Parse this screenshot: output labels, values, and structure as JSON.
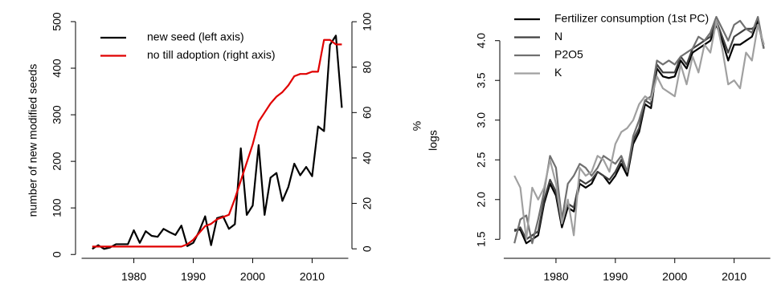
{
  "chart_data": [
    {
      "type": "line",
      "y_label": "number of new modified seeds",
      "y2_label": "%",
      "x": [
        1973,
        1974,
        1975,
        1976,
        1977,
        1978,
        1979,
        1980,
        1981,
        1982,
        1983,
        1984,
        1985,
        1986,
        1987,
        1988,
        1989,
        1990,
        1991,
        1992,
        1993,
        1994,
        1995,
        1996,
        1997,
        1998,
        1999,
        2000,
        2001,
        2002,
        2003,
        2004,
        2005,
        2006,
        2007,
        2008,
        2009,
        2010,
        2011,
        2012,
        2013,
        2014,
        2015
      ],
      "series": [
        {
          "name": "new seed (left axis)",
          "color": "#000000",
          "axis": "y",
          "values": [
            12,
            20,
            12,
            15,
            22,
            22,
            22,
            52,
            25,
            50,
            40,
            38,
            55,
            48,
            42,
            62,
            18,
            25,
            50,
            82,
            20,
            78,
            82,
            55,
            65,
            228,
            85,
            105,
            235,
            85,
            165,
            175,
            115,
            145,
            195,
            170,
            188,
            168,
            275,
            265,
            450,
            470,
            315
          ]
        },
        {
          "name": "no till adoption (right axis)",
          "color": "#e00000",
          "axis": "y2",
          "values": [
            1,
            1,
            1,
            1,
            1,
            1,
            1,
            1,
            1,
            1,
            1,
            1,
            1,
            1,
            1,
            1,
            2,
            4,
            7,
            10,
            11,
            13,
            14,
            15,
            22,
            30,
            38,
            46,
            56,
            60,
            64,
            67,
            69,
            72,
            76,
            77,
            77,
            78,
            78,
            92,
            92,
            90,
            90
          ]
        }
      ],
      "xlim": [
        1971,
        2016.7
      ],
      "xticks": [
        1980,
        1990,
        2000,
        2010
      ],
      "ylim": [
        -22,
        512
      ],
      "yticks": [
        0,
        100,
        200,
        300,
        400,
        500
      ],
      "y2lim": [
        -7,
        102.5
      ],
      "y2ticks": [
        0,
        20,
        40,
        60,
        80,
        100
      ],
      "legend": "top-left"
    },
    {
      "type": "line",
      "y_label": "logs",
      "x": [
        1973,
        1974,
        1975,
        1976,
        1977,
        1978,
        1979,
        1980,
        1981,
        1982,
        1983,
        1984,
        1985,
        1986,
        1987,
        1988,
        1989,
        1990,
        1991,
        1992,
        1993,
        1994,
        1995,
        1996,
        1997,
        1998,
        1999,
        2000,
        2001,
        2002,
        2003,
        2004,
        2005,
        2006,
        2007,
        2008,
        2009,
        2010,
        2011,
        2012,
        2013,
        2014,
        2015
      ],
      "series": [
        {
          "name": "Fertilizer consumption (1st PC)",
          "color": "#000000",
          "values": [
            1.62,
            1.62,
            1.45,
            1.5,
            1.55,
            1.95,
            2.2,
            2.05,
            1.65,
            1.9,
            1.85,
            2.2,
            2.15,
            2.2,
            2.35,
            2.3,
            2.2,
            2.3,
            2.45,
            2.3,
            2.7,
            2.85,
            3.2,
            3.15,
            3.65,
            3.55,
            3.53,
            3.55,
            3.75,
            3.65,
            3.85,
            3.9,
            3.95,
            4.0,
            4.2,
            4.0,
            3.75,
            3.95,
            3.95,
            4.0,
            4.05,
            4.25,
            3.9
          ]
        },
        {
          "name": "N",
          "color": "#404040",
          "values": [
            1.6,
            1.65,
            1.5,
            1.55,
            1.6,
            2.0,
            2.25,
            2.1,
            1.7,
            1.95,
            1.9,
            2.25,
            2.2,
            2.25,
            2.35,
            2.3,
            2.25,
            2.35,
            2.5,
            2.35,
            2.75,
            2.9,
            3.25,
            3.2,
            3.7,
            3.6,
            3.6,
            3.6,
            3.8,
            3.7,
            3.9,
            3.95,
            4.0,
            4.05,
            4.25,
            4.05,
            3.85,
            4.05,
            4.1,
            4.15,
            4.15,
            4.2,
            3.95
          ]
        },
        {
          "name": "P2O5",
          "color": "#707070",
          "values": [
            1.45,
            1.75,
            1.8,
            1.45,
            1.75,
            2.1,
            2.55,
            2.4,
            1.75,
            2.2,
            2.3,
            2.45,
            2.4,
            2.3,
            2.4,
            2.55,
            2.5,
            2.45,
            2.55,
            2.35,
            2.8,
            3.0,
            3.25,
            3.3,
            3.75,
            3.7,
            3.75,
            3.7,
            3.8,
            3.85,
            3.9,
            4.05,
            4.0,
            4.1,
            4.3,
            4.15,
            4.0,
            4.2,
            4.25,
            4.15,
            4.1,
            4.3,
            3.9
          ]
        },
        {
          "name": "K",
          "color": "#a0a0a0",
          "values": [
            2.3,
            2.15,
            1.5,
            2.15,
            2.0,
            2.15,
            2.5,
            2.2,
            1.7,
            2.0,
            1.55,
            2.4,
            2.3,
            2.35,
            2.55,
            2.5,
            2.35,
            2.7,
            2.85,
            2.9,
            3.0,
            3.2,
            3.3,
            3.25,
            3.55,
            3.4,
            3.35,
            3.3,
            3.7,
            3.45,
            3.8,
            3.6,
            3.95,
            3.85,
            4.25,
            3.9,
            3.45,
            3.5,
            3.4,
            3.85,
            3.75,
            4.2,
            3.95
          ]
        }
      ],
      "xlim": [
        1971.35,
        2016
      ],
      "xticks": [
        1980,
        1990,
        2000,
        2010
      ],
      "ylim": [
        1.18,
        4.31
      ],
      "yticks": [
        1.5,
        {
          "value": 2,
          "label": "2.0"
        },
        2.5,
        {
          "value": 3,
          "label": "3.0"
        },
        3.5,
        {
          "value": 4,
          "label": "4.0"
        }
      ],
      "legend": "top-left"
    }
  ]
}
